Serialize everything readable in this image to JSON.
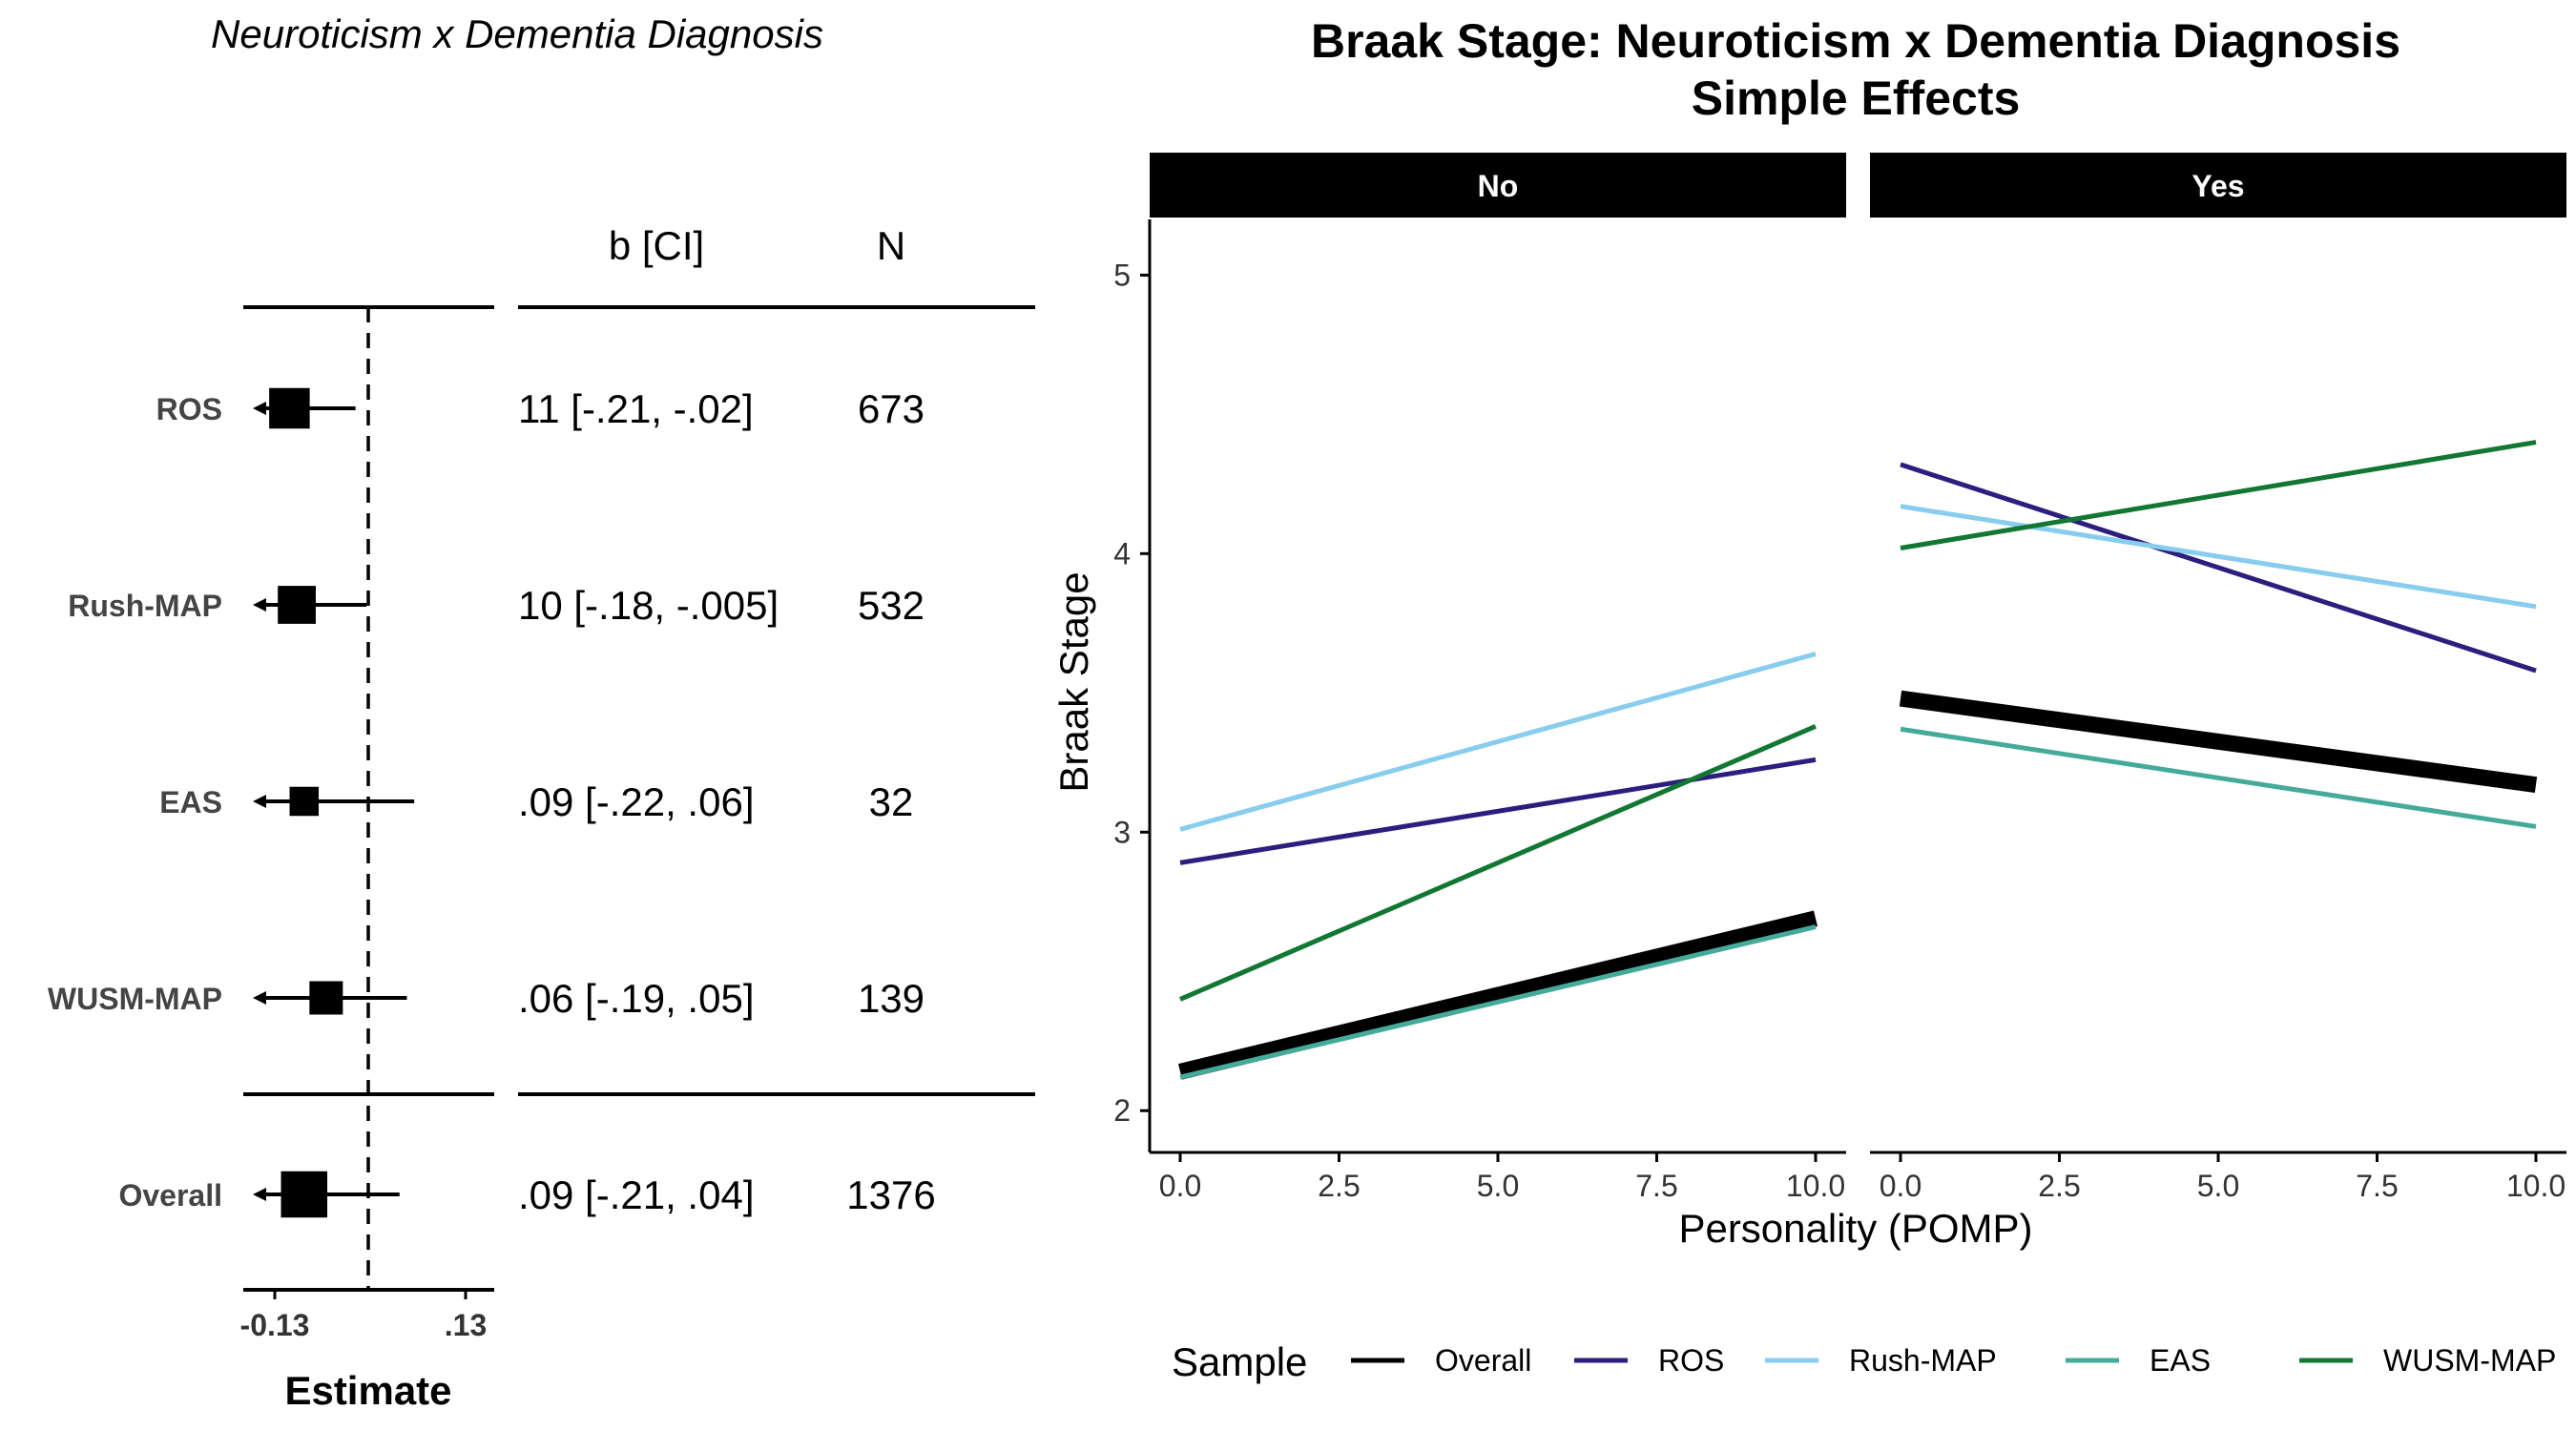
{
  "chart_data": [
    {
      "type": "forest",
      "title": "Neuroticism x Dementia Diagnosis",
      "column_headers": {
        "ci": "b [CI]",
        "n": "N"
      },
      "xlabel": "Estimate",
      "x_ticks": [
        "-0.13",
        ".13"
      ],
      "xlim": [
        -0.13,
        0.13
      ],
      "reference_line": 0,
      "rows": [
        {
          "label": "ROS",
          "estimate": -0.11,
          "ci_low": -0.21,
          "ci_high": -0.02,
          "ci_text": "11 [-.21, -.02]",
          "n": "673",
          "weight": 0.75
        },
        {
          "label": "Rush-MAP",
          "estimate": -0.1,
          "ci_low": -0.18,
          "ci_high": -0.005,
          "ci_text": "10 [-.18, -.005]",
          "n": "532",
          "weight": 0.66
        },
        {
          "label": "EAS",
          "estimate": -0.09,
          "ci_low": -0.22,
          "ci_high": 0.06,
          "ci_text": ".09 [-.22, .06]",
          "n": "32",
          "weight": 0.35
        },
        {
          "label": "WUSM-MAP",
          "estimate": -0.06,
          "ci_low": -0.19,
          "ci_high": 0.05,
          "ci_text": ".06 [-.19, .05]",
          "n": "139",
          "weight": 0.5
        }
      ],
      "overall": {
        "label": "Overall",
        "estimate": -0.09,
        "ci_low": -0.21,
        "ci_high": 0.04,
        "ci_text": ".09 [-.21, .04]",
        "n": "1376",
        "weight": 0.95
      }
    },
    {
      "type": "line",
      "title": "Braak Stage: Neuroticism x Dementia Diagnosis",
      "subtitle": "Simple Effects",
      "xlabel": "Personality (POMP)",
      "ylabel": "Braak Stage",
      "xlim": [
        0,
        10
      ],
      "ylim": [
        1.85,
        5.2
      ],
      "x_ticks": [
        "0.0",
        "2.5",
        "5.0",
        "7.5",
        "10.0"
      ],
      "y_ticks": [
        "2",
        "3",
        "4",
        "5"
      ],
      "legend_title": "Sample",
      "legend_position": "bottom",
      "panels": [
        {
          "label": "No",
          "series": [
            {
              "name": "Overall",
              "color": "#000000",
              "x": [
                0,
                10
              ],
              "y": [
                2.14,
                2.69
              ]
            },
            {
              "name": "ROS",
              "color": "#2C1E7E",
              "x": [
                0,
                10
              ],
              "y": [
                2.89,
                3.26
              ]
            },
            {
              "name": "Rush-MAP",
              "color": "#88CCEE",
              "x": [
                0,
                10
              ],
              "y": [
                3.01,
                3.64
              ]
            },
            {
              "name": "EAS",
              "color": "#44AA99",
              "x": [
                0,
                10
              ],
              "y": [
                2.12,
                2.66
              ]
            },
            {
              "name": "WUSM-MAP",
              "color": "#117733",
              "x": [
                0,
                10
              ],
              "y": [
                2.4,
                3.38
              ]
            }
          ]
        },
        {
          "label": "Yes",
          "series": [
            {
              "name": "Overall",
              "color": "#000000",
              "x": [
                0,
                10
              ],
              "y": [
                3.48,
                3.17
              ]
            },
            {
              "name": "ROS",
              "color": "#2C1E7E",
              "x": [
                0,
                10
              ],
              "y": [
                4.32,
                3.58
              ]
            },
            {
              "name": "Rush-MAP",
              "color": "#88CCEE",
              "x": [
                0,
                10
              ],
              "y": [
                4.17,
                3.81
              ]
            },
            {
              "name": "EAS",
              "color": "#44AA99",
              "x": [
                0,
                10
              ],
              "y": [
                3.37,
                3.02
              ]
            },
            {
              "name": "WUSM-MAP",
              "color": "#117733",
              "x": [
                0,
                10
              ],
              "y": [
                4.02,
                4.4
              ]
            }
          ]
        }
      ]
    }
  ]
}
